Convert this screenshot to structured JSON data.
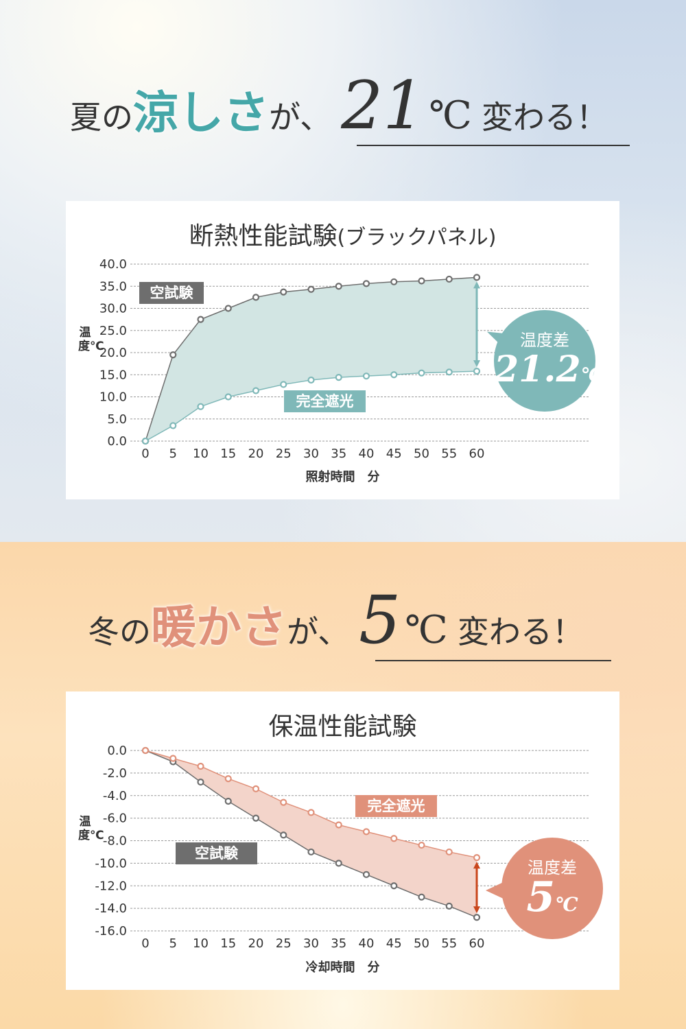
{
  "summer": {
    "headline": {
      "pre": "夏の",
      "accent": "涼しさ",
      "mid": "が、",
      "number": "21",
      "unit": "℃",
      "post": "変わる！",
      "accent_color": "#45a7a8"
    },
    "chart_data": {
      "type": "area",
      "title": "断熱性能試験",
      "title_suffix": "(ブラックパネル)",
      "xlabel": "照射時間　分",
      "ylabel": "温度℃",
      "x": [
        0,
        5,
        10,
        15,
        20,
        25,
        30,
        35,
        40,
        45,
        50,
        55,
        60
      ],
      "ylim": [
        0,
        40
      ],
      "yticks": [
        "40.0",
        "35.0",
        "30.0",
        "25.0",
        "20.0",
        "15.0",
        "10.0",
        "5.0",
        "0.0"
      ],
      "grid": true,
      "series": [
        {
          "name": "空試験",
          "values": [
            0,
            19.5,
            27.5,
            30,
            32.5,
            33.7,
            34.3,
            35,
            35.6,
            36,
            36.2,
            36.6,
            37
          ],
          "color": "#6e6e6e"
        },
        {
          "name": "完全遮光",
          "values": [
            0,
            3.5,
            7.8,
            10,
            11.4,
            12.8,
            13.8,
            14.4,
            14.7,
            15,
            15.4,
            15.6,
            15.8
          ],
          "color": "#7fb8b8"
        }
      ],
      "fill_color": "#d2e5e3",
      "difference": {
        "label": "温度差",
        "value": "21.2",
        "unit": "℃",
        "color": "#7fb8b8"
      }
    }
  },
  "winter": {
    "headline": {
      "pre": "冬の",
      "accent": "暖かさ",
      "mid": "が、",
      "number": "5",
      "unit": "℃",
      "post": "変わる！",
      "accent_color": "#e0917a"
    },
    "chart_data": {
      "type": "area",
      "title": "保温性能試験",
      "title_suffix": "",
      "xlabel": "冷却時間　分",
      "ylabel": "温度℃",
      "x": [
        0,
        5,
        10,
        15,
        20,
        25,
        30,
        35,
        40,
        45,
        50,
        55,
        60
      ],
      "ylim": [
        -16,
        0
      ],
      "yticks": [
        "0.0",
        "-2.0",
        "-4.0",
        "-6.0",
        "-8.0",
        "-10.0",
        "-12.0",
        "-14.0",
        "-16.0"
      ],
      "grid": true,
      "series": [
        {
          "name": "空試験",
          "values": [
            0,
            -1,
            -2.8,
            -4.5,
            -6,
            -7.5,
            -9,
            -10,
            -11,
            -12,
            -13,
            -13.8,
            -14.8
          ],
          "color": "#6e6e6e"
        },
        {
          "name": "完全遮光",
          "values": [
            0,
            -0.7,
            -1.4,
            -2.5,
            -3.4,
            -4.6,
            -5.5,
            -6.6,
            -7.2,
            -7.8,
            -8.4,
            -9,
            -9.5
          ],
          "color": "#e0917a"
        }
      ],
      "fill_color": "#f3d4ca",
      "difference": {
        "label": "温度差",
        "value": "5",
        "unit": "℃",
        "color": "#e0917a",
        "arrow_color": "#c9461c"
      }
    }
  }
}
